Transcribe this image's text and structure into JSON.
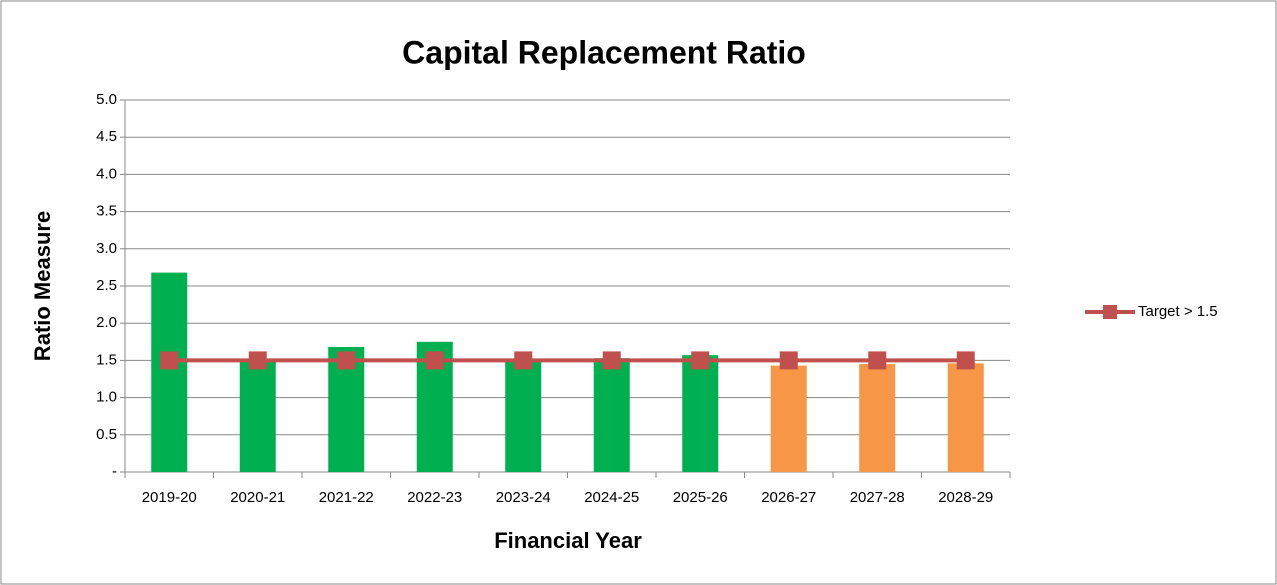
{
  "chart_data": {
    "type": "bar",
    "title": "Capital Replacement Ratio",
    "x_label": "Financial Year",
    "y_label": "Ratio Measure",
    "categories": [
      "2019-20",
      "2020-21",
      "2021-22",
      "2022-23",
      "2023-24",
      "2024-25",
      "2025-26",
      "2026-27",
      "2027-28",
      "2028-29"
    ],
    "values": [
      2.68,
      1.52,
      1.68,
      1.75,
      1.52,
      1.53,
      1.57,
      1.43,
      1.45,
      1.46
    ],
    "colors": [
      "#00b050",
      "#00b050",
      "#00b050",
      "#00b050",
      "#00b050",
      "#00b050",
      "#00b050",
      "#f79646",
      "#f79646",
      "#f79646"
    ],
    "line_series": [
      {
        "name": "Target > 1.5",
        "color": "#c0504d",
        "values": [
          1.5,
          1.5,
          1.5,
          1.5,
          1.5,
          1.5,
          1.5,
          1.5,
          1.5,
          1.5
        ]
      }
    ],
    "ylim": [
      0,
      5
    ],
    "yticks": [
      {
        "value": 0,
        "label": "-"
      },
      0.5,
      {
        "value": 1,
        "label": "1.0"
      },
      1.5,
      {
        "value": 2,
        "label": "2.0"
      },
      2.5,
      {
        "value": 3,
        "label": "3.0"
      },
      3.5,
      {
        "value": 4,
        "label": "4.0"
      },
      4.5,
      {
        "value": 5,
        "label": "5.0"
      }
    ],
    "grid": true,
    "legend": "right"
  }
}
